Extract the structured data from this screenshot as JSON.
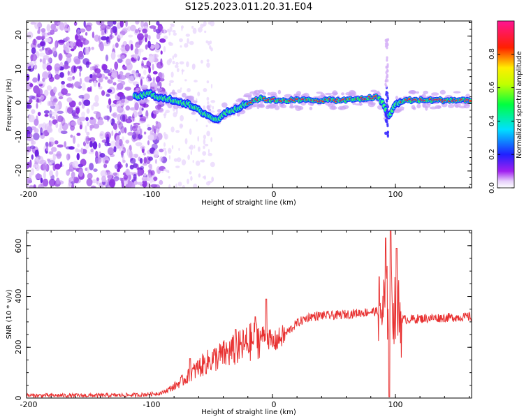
{
  "title": "S125.2023.011.20.31.E04",
  "chart_data": [
    {
      "type": "heatmap",
      "xlabel": "Height of straight line (km)",
      "ylabel": "Frequency (Hz)",
      "xlim": [
        -200,
        162
      ],
      "ylim": [
        -25,
        24.5
      ],
      "xticks": [
        -200,
        -100,
        0,
        100
      ],
      "xtick_labels": [
        "-200",
        "-100",
        "0",
        "100"
      ],
      "yticks": [
        -20,
        -10,
        0,
        10,
        20
      ],
      "ytick_labels": [
        "-20",
        "-10",
        "0",
        "10",
        "20"
      ],
      "colorbar": {
        "label": "Normalized spectral amplitude",
        "range": [
          0.0,
          1.0
        ],
        "ticks": [
          0.0,
          0.2,
          0.4,
          0.6,
          0.8
        ],
        "tick_labels": [
          "0.0",
          "0.2",
          "0.4",
          "0.6",
          "0.8"
        ],
        "colormap": "rainbow (white-violet-blue-cyan-green-yellow-red-magenta)"
      },
      "ridge": {
        "x": [
          -110,
          -100,
          -90,
          -80,
          -70,
          -60,
          -50,
          -45,
          -40,
          -30,
          -20,
          -15,
          -10,
          0,
          20,
          40,
          60,
          75,
          85,
          90,
          95,
          100,
          110,
          130,
          162
        ],
        "freq": [
          2,
          3,
          1.5,
          1,
          0,
          -2,
          -4,
          -5,
          -3,
          -1.5,
          0,
          1,
          1.5,
          1,
          1,
          1,
          1,
          1.5,
          2,
          0,
          -4,
          0,
          1,
          1,
          1
        ]
      }
    },
    {
      "type": "line",
      "xlabel": "Height of straight line (km)",
      "ylabel": "SNR (10 * v/v)",
      "xlim": [
        -200,
        162
      ],
      "ylim": [
        0,
        660
      ],
      "xticks": [
        -200,
        -100,
        0,
        100
      ],
      "xtick_labels": [
        "-200",
        "-100",
        "0",
        "100"
      ],
      "yticks": [
        0,
        200,
        400,
        600
      ],
      "ytick_labels": [
        "0",
        "200",
        "400",
        "600"
      ],
      "series": [
        {
          "name": "SNR",
          "color": "#e83030",
          "x": [
            -200,
            -150,
            -110,
            -100,
            -90,
            -80,
            -70,
            -60,
            -50,
            -40,
            -30,
            -20,
            -10,
            -5,
            0,
            10,
            20,
            30,
            40,
            50,
            60,
            70,
            80,
            85,
            90,
            95,
            100,
            103,
            106,
            110,
            130,
            162
          ],
          "values": [
            10,
            10,
            12,
            15,
            20,
            45,
            80,
            120,
            150,
            170,
            190,
            215,
            240,
            250,
            215,
            250,
            295,
            320,
            325,
            325,
            330,
            335,
            340,
            340,
            345,
            380,
            360,
            320,
            310,
            310,
            315,
            320
          ]
        }
      ],
      "spikes": [
        {
          "x": -67,
          "value": 155
        },
        {
          "x": -30,
          "value": 270
        },
        {
          "x": -14,
          "value": 320
        },
        {
          "x": -5,
          "value": 390
        },
        {
          "x": 92,
          "value": 630
        },
        {
          "x": 96,
          "value": 660
        },
        {
          "x": 101,
          "value": 590
        },
        {
          "x": 95,
          "value": 5
        }
      ]
    }
  ]
}
